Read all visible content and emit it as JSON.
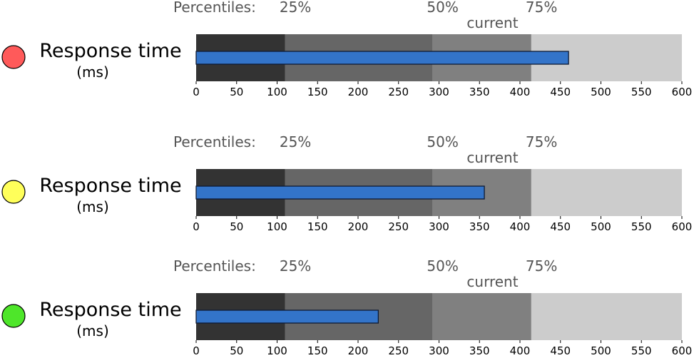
{
  "chart_data": [
    {
      "type": "bullet",
      "status_color": "#ff5a5a",
      "title": "Response time",
      "unit": "(ms)",
      "percentile_prefix": "Percentiles:",
      "percentile_labels": [
        "25%",
        "50%",
        "75%"
      ],
      "current_label": "current",
      "range_bands": [
        {
          "from": 0,
          "to": 110,
          "color": "#333333"
        },
        {
          "from": 110,
          "to": 292,
          "color": "#666666"
        },
        {
          "from": 292,
          "to": 414,
          "color": "#808080"
        },
        {
          "from": 414,
          "to": 600,
          "color": "#cccccc"
        }
      ],
      "percentile_values": [
        110,
        292,
        414
      ],
      "current_value": 460,
      "bar_color": "#3374c9",
      "xlim": [
        0,
        600
      ],
      "ticks": [
        0,
        50,
        100,
        150,
        200,
        250,
        300,
        350,
        400,
        450,
        500,
        550,
        600
      ]
    },
    {
      "type": "bullet",
      "status_color": "#ffff5a",
      "title": "Response time",
      "unit": "(ms)",
      "percentile_prefix": "Percentiles:",
      "percentile_labels": [
        "25%",
        "50%",
        "75%"
      ],
      "current_label": "current",
      "range_bands": [
        {
          "from": 0,
          "to": 110,
          "color": "#333333"
        },
        {
          "from": 110,
          "to": 292,
          "color": "#666666"
        },
        {
          "from": 292,
          "to": 414,
          "color": "#808080"
        },
        {
          "from": 414,
          "to": 600,
          "color": "#cccccc"
        }
      ],
      "percentile_values": [
        110,
        292,
        414
      ],
      "current_value": 356,
      "bar_color": "#3374c9",
      "xlim": [
        0,
        600
      ],
      "ticks": [
        0,
        50,
        100,
        150,
        200,
        250,
        300,
        350,
        400,
        450,
        500,
        550,
        600
      ]
    },
    {
      "type": "bullet",
      "status_color": "#4ee62a",
      "title": "Response time",
      "unit": "(ms)",
      "percentile_prefix": "Percentiles:",
      "percentile_labels": [
        "25%",
        "50%",
        "75%"
      ],
      "current_label": "current",
      "range_bands": [
        {
          "from": 0,
          "to": 110,
          "color": "#333333"
        },
        {
          "from": 110,
          "to": 292,
          "color": "#666666"
        },
        {
          "from": 292,
          "to": 414,
          "color": "#808080"
        },
        {
          "from": 414,
          "to": 600,
          "color": "#cccccc"
        }
      ],
      "percentile_values": [
        110,
        292,
        414
      ],
      "current_value": 225,
      "bar_color": "#3374c9",
      "xlim": [
        0,
        600
      ],
      "ticks": [
        0,
        50,
        100,
        150,
        200,
        250,
        300,
        350,
        400,
        450,
        500,
        550,
        600
      ]
    }
  ]
}
